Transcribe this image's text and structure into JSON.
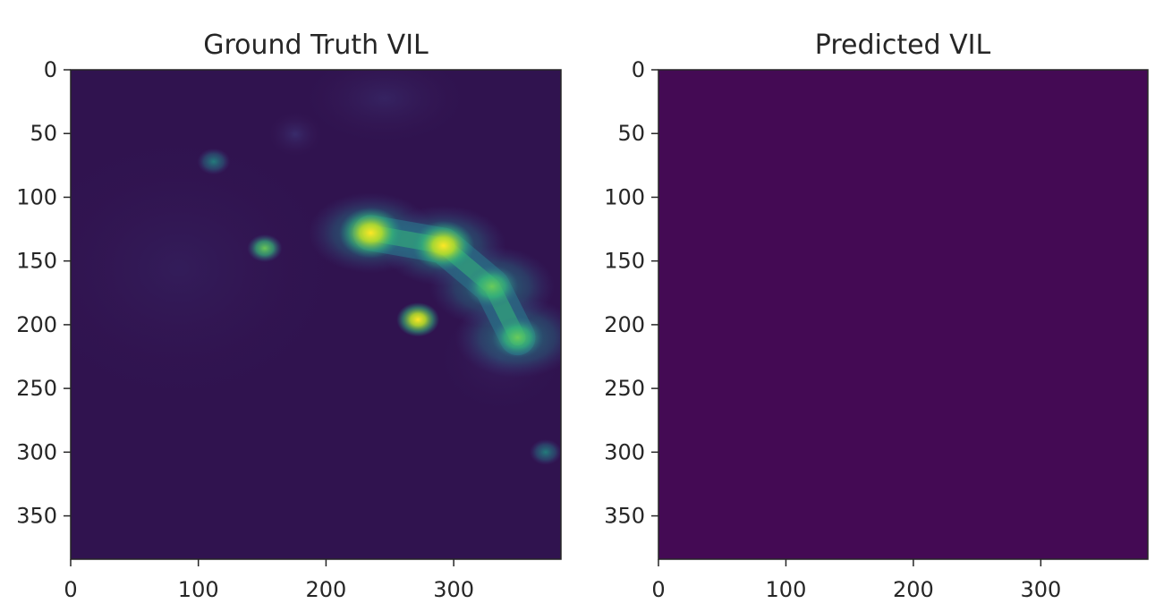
{
  "chart_data": [
    {
      "type": "heatmap",
      "title": "Ground Truth VIL",
      "xlabel": "",
      "ylabel": "",
      "xlim": [
        0,
        384
      ],
      "ylim": [
        384,
        0
      ],
      "x_ticks": [
        0,
        100,
        200,
        300
      ],
      "y_ticks": [
        0,
        50,
        100,
        150,
        200,
        250,
        300,
        350
      ],
      "colormap": "viridis",
      "background_color": "#30134f",
      "features": [
        {
          "kind": "storm-band",
          "x": 235,
          "y": 128,
          "intensity": 0.95
        },
        {
          "kind": "storm-band",
          "x": 292,
          "y": 138,
          "intensity": 0.9
        },
        {
          "kind": "storm-band",
          "x": 330,
          "y": 170,
          "intensity": 0.55
        },
        {
          "kind": "storm-band",
          "x": 350,
          "y": 210,
          "intensity": 0.5
        },
        {
          "kind": "cell",
          "x": 272,
          "y": 196,
          "intensity": 1.0
        },
        {
          "kind": "cell",
          "x": 152,
          "y": 140,
          "intensity": 0.55
        },
        {
          "kind": "cell",
          "x": 112,
          "y": 72,
          "intensity": 0.45
        },
        {
          "kind": "cell",
          "x": 372,
          "y": 300,
          "intensity": 0.4
        }
      ]
    },
    {
      "type": "heatmap",
      "title": "Predicted VIL",
      "xlabel": "",
      "ylabel": "",
      "xlim": [
        0,
        384
      ],
      "ylim": [
        384,
        0
      ],
      "x_ticks": [
        0,
        100,
        200,
        300
      ],
      "y_ticks": [
        0,
        50,
        100,
        150,
        200,
        250,
        300,
        350
      ],
      "colormap": "viridis",
      "uniform_value": 0,
      "fill_color": "#440a54"
    }
  ]
}
